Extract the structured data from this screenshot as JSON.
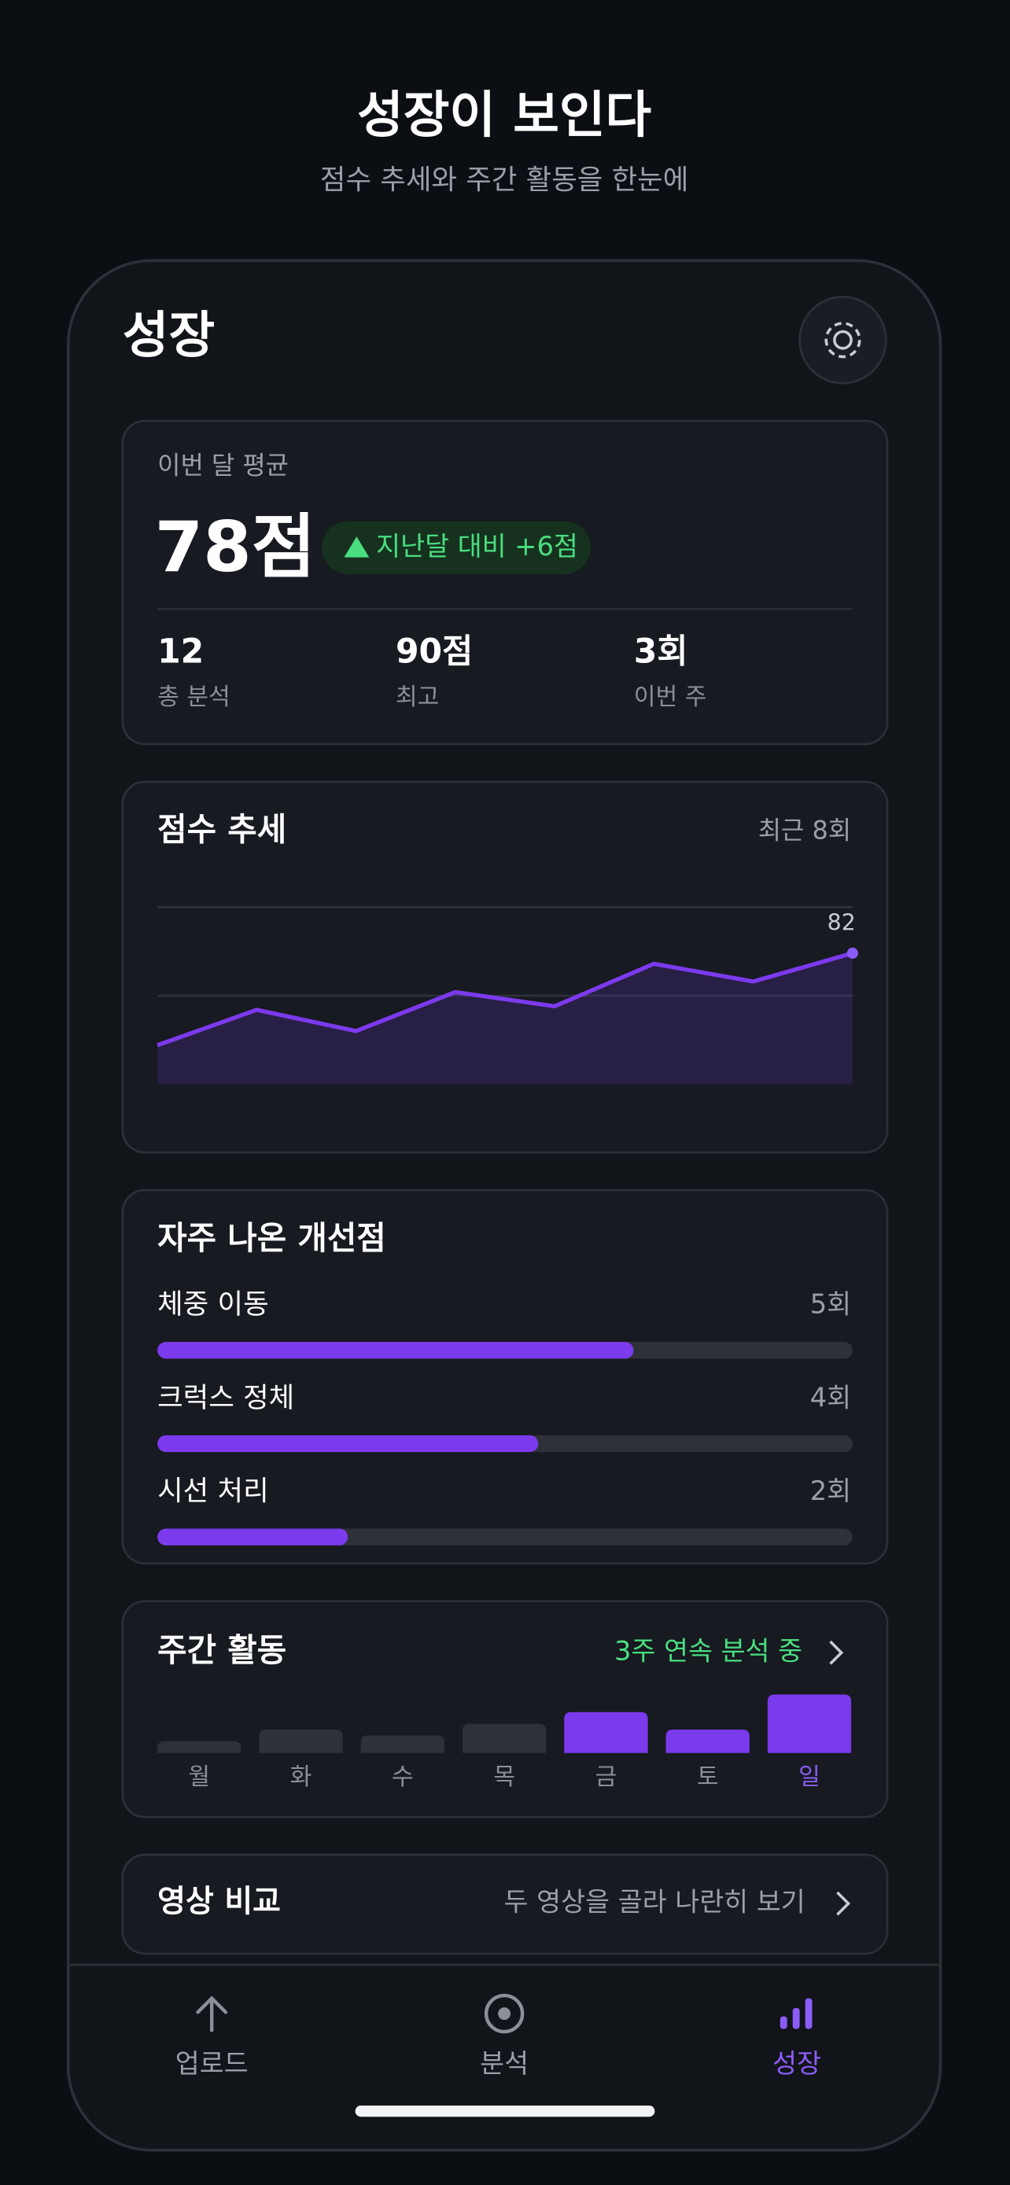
{
  "header": {
    "title": "성장이 보인다",
    "subtitle": "점수 추세와 주간 활동을 한눈에"
  },
  "app": {
    "title": "성장"
  },
  "summary": {
    "label": "이번 달 평균",
    "average": {
      "value": 78,
      "label": "78점"
    },
    "change": {
      "value": 6,
      "label": "지난달 대비 +6점"
    },
    "stats": [
      {
        "value": 12,
        "caption": "총 분석"
      },
      {
        "value": {
          "value": 90,
          "label": "90점"
        },
        "caption": "최고"
      },
      {
        "value": {
          "value": 3,
          "label": "3회"
        },
        "caption": "이번 주"
      }
    ]
  },
  "trend": {
    "type": "line",
    "title": "점수 추세",
    "note": "최근 8회",
    "values": [
      56,
      66,
      60,
      71,
      67,
      79,
      74,
      82
    ],
    "color": "#7c3aed",
    "ylim": [
      45,
      95
    ],
    "gridlines": [
      70,
      95
    ]
  },
  "improvements": {
    "type": "bar",
    "title": "자주 나온 개선점",
    "items": [
      {
        "name": "체중 이동",
        "count": {
          "value": 5,
          "label": "5회"
        }
      },
      {
        "name": "크럭스 정체",
        "count": {
          "value": 4,
          "label": "4회"
        }
      },
      {
        "name": "시선 처리",
        "count": {
          "value": 2,
          "label": "2회"
        }
      }
    ],
    "xlim": [
      0,
      7.3
    ],
    "color": "#7c3aed"
  },
  "weekly": {
    "type": "bar",
    "title": "주간 활동",
    "streak": "3주 연속 분석 중",
    "categories": [
      "월",
      "화",
      "수",
      "목",
      "금",
      "토",
      "일"
    ],
    "values": [
      2,
      4,
      3,
      5,
      7,
      4,
      10
    ],
    "ylim": [
      0,
      10
    ],
    "colors": [
      "#2e3139",
      "#2e3139",
      "#2e3139",
      "#2e3139",
      "#7c3aed",
      "#7c3aed",
      "#7c3aed"
    ],
    "label_colors": [
      "#8b8f98",
      "#8b8f98",
      "#8b8f98",
      "#8b8f98",
      "#8b8f98",
      "#8b8f98",
      "#8b5cf6"
    ]
  },
  "compare": {
    "title": "영상 비교",
    "action": "두 영상을 골라 나란히 보기"
  },
  "nav": {
    "tabs": [
      "업로드",
      "분석",
      "성장"
    ],
    "active_index": 2
  }
}
